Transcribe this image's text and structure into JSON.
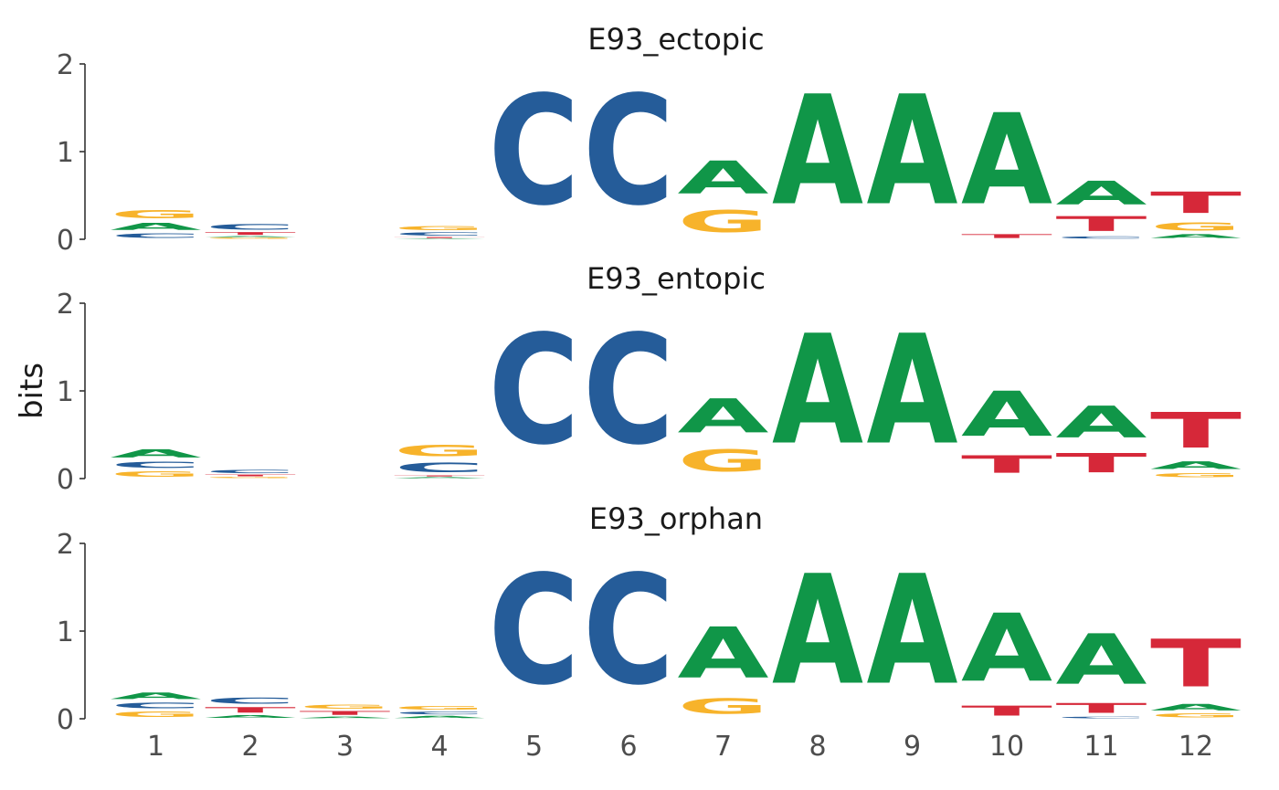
{
  "chart_data": {
    "type": "sequence-logo",
    "ylabel": "bits",
    "ylim": [
      0,
      2
    ],
    "yticks": [
      0,
      1,
      2
    ],
    "positions": [
      1,
      2,
      3,
      4,
      5,
      6,
      7,
      8,
      9,
      10,
      11,
      12
    ],
    "colors": {
      "A": "#109648",
      "C": "#255C99",
      "G": "#F7B32B",
      "T": "#D62839"
    },
    "panels": [
      {
        "title": "E93_ectopic",
        "columns": [
          [
            [
              "C",
              0.08
            ],
            [
              "A",
              0.13
            ],
            [
              "G",
              0.15
            ]
          ],
          [
            [
              "G",
              0.02
            ],
            [
              "A",
              0.02
            ],
            [
              "T",
              0.05
            ],
            [
              "C",
              0.1
            ]
          ],
          [],
          [
            [
              "A",
              0.01
            ],
            [
              "T",
              0.02
            ],
            [
              "C",
              0.06
            ],
            [
              "G",
              0.07
            ]
          ],
          [
            [
              "C",
              2.0
            ]
          ],
          [
            [
              "C",
              2.0
            ]
          ],
          [
            [
              "G",
              0.4
            ],
            [
              "A",
              0.6
            ]
          ],
          [
            [
              "A",
              2.0
            ]
          ],
          [
            [
              "A",
              2.0
            ]
          ],
          [
            [
              "T",
              0.07
            ],
            [
              "A",
              1.66
            ]
          ],
          [
            [
              "C",
              0.04
            ],
            [
              "T",
              0.27
            ],
            [
              "A",
              0.43
            ]
          ],
          [
            [
              "A",
              0.07
            ],
            [
              "G",
              0.15
            ],
            [
              "T",
              0.39
            ]
          ]
        ]
      },
      {
        "title": "E93_entopic",
        "columns": [
          [
            [
              "G",
              0.1
            ],
            [
              "C",
              0.11
            ],
            [
              "A",
              0.15
            ]
          ],
          [
            [
              "G",
              0.02
            ],
            [
              "T",
              0.03
            ],
            [
              "C",
              0.06
            ]
          ],
          [],
          [
            [
              "A",
              0.02
            ],
            [
              "T",
              0.02
            ],
            [
              "C",
              0.17
            ],
            [
              "G",
              0.21
            ]
          ],
          [
            [
              "C",
              2.0
            ]
          ],
          [
            [
              "C",
              2.0
            ]
          ],
          [
            [
              "G",
              0.4
            ],
            [
              "A",
              0.62
            ]
          ],
          [
            [
              "A",
              2.0
            ]
          ],
          [
            [
              "A",
              2.0
            ]
          ],
          [
            [
              "T",
              0.32
            ],
            [
              "A",
              0.82
            ]
          ],
          [
            [
              "T",
              0.35
            ],
            [
              "A",
              0.58
            ]
          ],
          [
            [
              "G",
              0.08
            ],
            [
              "A",
              0.14
            ],
            [
              "T",
              0.65
            ]
          ]
        ]
      },
      {
        "title": "E93_orphan",
        "columns": [
          [
            [
              "G",
              0.1
            ],
            [
              "C",
              0.1
            ],
            [
              "A",
              0.12
            ]
          ],
          [
            [
              "A",
              0.05
            ],
            [
              "T",
              0.1
            ],
            [
              "C",
              0.11
            ]
          ],
          [
            [
              "A",
              0.03
            ],
            [
              "T",
              0.07
            ],
            [
              "G",
              0.07
            ]
          ],
          [
            [
              "A",
              0.04
            ],
            [
              "C",
              0.05
            ],
            [
              "G",
              0.06
            ]
          ],
          [
            [
              "C",
              2.0
            ]
          ],
          [
            [
              "C",
              2.0
            ]
          ],
          [
            [
              "G",
              0.28
            ],
            [
              "A",
              0.93
            ]
          ],
          [
            [
              "A",
              2.0
            ]
          ],
          [
            [
              "A",
              2.0
            ]
          ],
          [
            [
              "T",
              0.18
            ],
            [
              "A",
              1.24
            ]
          ],
          [
            [
              "C",
              0.03
            ],
            [
              "T",
              0.18
            ],
            [
              "A",
              0.92
            ]
          ],
          [
            [
              "G",
              0.07
            ],
            [
              "A",
              0.12
            ],
            [
              "T",
              0.87
            ]
          ]
        ]
      }
    ]
  }
}
